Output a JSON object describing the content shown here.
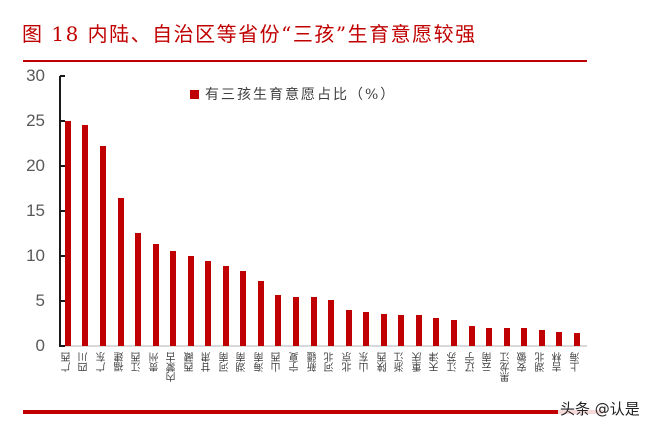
{
  "header": {
    "title": "图 18  内陆、自治区等省份“三孩”生育意愿较强"
  },
  "watermark": "头条 @认是",
  "colors": {
    "accent": "#c00000",
    "axis_text": "#595959",
    "gridline": "#d9d9d9"
  },
  "chart_data": {
    "type": "bar",
    "title": "图 18  内陆、自治区等省份“三孩”生育意愿较强",
    "xlabel": "",
    "ylabel": "",
    "ylim": [
      0,
      30
    ],
    "yticks": [
      0,
      5,
      10,
      15,
      20,
      25,
      30
    ],
    "grid": false,
    "legend_position": "top-center",
    "categories": [
      "广西",
      "四川",
      "广东",
      "福建",
      "江西",
      "贵州",
      "内蒙古",
      "西藏",
      "甘肃",
      "河南",
      "湖南",
      "海南",
      "山西",
      "宁夏",
      "新疆",
      "河北",
      "北京",
      "山东",
      "陕西",
      "浙江",
      "重庆",
      "天津",
      "江苏",
      "辽宁",
      "云南",
      "黑龙江",
      "安徽",
      "湖北",
      "吉林",
      "上海"
    ],
    "series": [
      {
        "name": "有三孩生育意愿占比（%）",
        "color": "#c00000",
        "values": [
          25.0,
          24.6,
          22.2,
          16.4,
          12.6,
          11.3,
          10.6,
          10.0,
          9.4,
          8.9,
          8.3,
          7.2,
          5.7,
          5.5,
          5.5,
          5.1,
          4.0,
          3.8,
          3.6,
          3.4,
          3.4,
          3.1,
          2.9,
          2.2,
          2.0,
          2.0,
          2.0,
          1.8,
          1.6,
          1.4
        ]
      }
    ]
  }
}
